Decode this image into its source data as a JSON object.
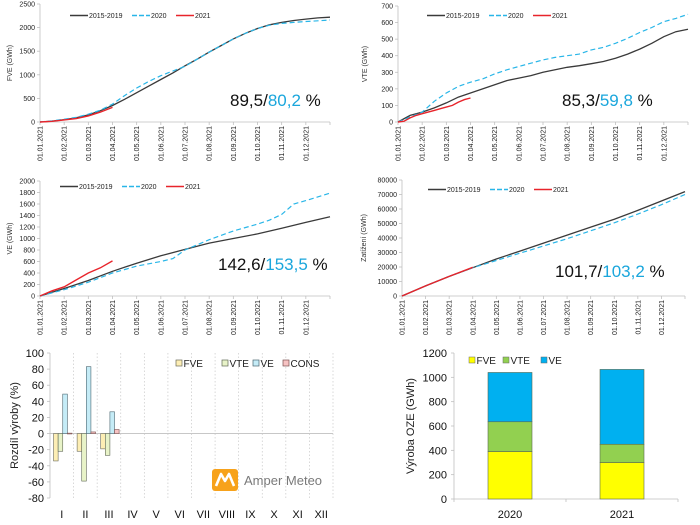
{
  "colors": {
    "avg": "#3a3a3a",
    "y2020": "#29b6e8",
    "y2021": "#e8242b",
    "pct_black": "#111111",
    "pct_blue": "#1aa6dc",
    "fve_light": "#fdeeb4",
    "vte_light": "#e8f3c8",
    "ve_light": "#c5ecf7",
    "cons_light": "#f7c3c3",
    "fve": "#ffff00",
    "vte": "#92d050",
    "ve": "#00b0f0",
    "logo": "#f7a21b"
  },
  "branding": {
    "logo_text": "Amper Meteo"
  },
  "chart_data": [
    {
      "id": "fve",
      "type": "line",
      "title": "",
      "ylabel": "FVE  (GWh)",
      "xlabel": "",
      "ylim": [
        0,
        2500
      ],
      "yticks": [
        0,
        500,
        1000,
        1500,
        2000,
        2500
      ],
      "xticks": [
        "01.01.2021",
        "01.02.2021",
        "01.03.2021",
        "01.04.2021",
        "01.05.2021",
        "01.06.2021",
        "01.07.2021",
        "01.08.2021",
        "01.09.2021",
        "01.10.2021",
        "01.11.2021",
        "01.12.2021"
      ],
      "xlim_months": [
        0,
        12
      ],
      "legend": [
        "2015-2019",
        "2020",
        "2021"
      ],
      "legend_position": "top-left",
      "annotation": {
        "black": "89,5/",
        "blue": "80,2",
        "suffix": " %"
      },
      "series": [
        {
          "name": "2015-2019",
          "x": [
            0,
            0.5,
            1,
            1.5,
            2,
            2.5,
            3,
            3.5,
            4,
            4.5,
            5,
            5.5,
            6,
            6.5,
            7,
            7.5,
            8,
            8.5,
            9,
            9.5,
            10,
            10.5,
            11,
            11.5,
            12
          ],
          "values": [
            0,
            20,
            50,
            90,
            150,
            240,
            350,
            480,
            620,
            760,
            900,
            1040,
            1190,
            1330,
            1480,
            1620,
            1760,
            1880,
            1980,
            2060,
            2110,
            2150,
            2180,
            2205,
            2220
          ]
        },
        {
          "name": "2020",
          "x": [
            0,
            0.5,
            1,
            1.5,
            2,
            2.5,
            3,
            3.5,
            4,
            4.5,
            5,
            5.5,
            6,
            6.5,
            7,
            7.5,
            8,
            8.5,
            9,
            9.5,
            10,
            10.5,
            11,
            11.5,
            12
          ],
          "values": [
            0,
            25,
            60,
            100,
            165,
            250,
            380,
            560,
            720,
            860,
            980,
            1080,
            1180,
            1330,
            1480,
            1620,
            1760,
            1880,
            1980,
            2050,
            2090,
            2110,
            2130,
            2145,
            2160
          ]
        },
        {
          "name": "2021",
          "x": [
            0,
            0.5,
            1,
            1.5,
            2,
            2.5,
            3
          ],
          "values": [
            0,
            15,
            45,
            75,
            130,
            210,
            310
          ]
        }
      ]
    },
    {
      "id": "vte",
      "type": "line",
      "title": "",
      "ylabel": "VTE  (GWh)",
      "xlabel": "",
      "ylim": [
        0,
        700
      ],
      "yticks": [
        0,
        100,
        200,
        300,
        400,
        500,
        600,
        700
      ],
      "xticks": [
        "01.01.2021",
        "01.02.2021",
        "01.03.2021",
        "01.04.2021",
        "01.05.2021",
        "01.06.2021",
        "01.07.2021",
        "01.08.2021",
        "01.09.2021",
        "01.10.2021",
        "01.11.2021",
        "01.12.2021"
      ],
      "xlim_months": [
        0,
        12
      ],
      "legend": [
        "2015-2019",
        "2020",
        "2021"
      ],
      "legend_position": "top-left",
      "annotation": {
        "black": "85,3/",
        "blue": "59,8",
        "suffix": " %"
      },
      "series": [
        {
          "name": "2015-2019",
          "x": [
            0,
            0.5,
            1,
            1.5,
            2,
            2.5,
            3,
            3.5,
            4,
            4.5,
            5,
            5.5,
            6,
            6.5,
            7,
            7.5,
            8,
            8.5,
            9,
            9.5,
            10,
            10.5,
            11,
            11.5,
            12
          ],
          "values": [
            0,
            40,
            60,
            85,
            115,
            150,
            175,
            200,
            225,
            250,
            265,
            280,
            300,
            315,
            330,
            340,
            352,
            365,
            385,
            410,
            440,
            475,
            515,
            545,
            560
          ]
        },
        {
          "name": "2020",
          "x": [
            0,
            0.5,
            1,
            1.5,
            2,
            2.5,
            3,
            3.5,
            4,
            4.5,
            5,
            5.5,
            6,
            6.5,
            7,
            7.5,
            8,
            8.5,
            9,
            9.5,
            10,
            10.5,
            11,
            11.5,
            12
          ],
          "values": [
            0,
            30,
            60,
            125,
            175,
            215,
            240,
            260,
            290,
            315,
            335,
            355,
            375,
            390,
            400,
            410,
            435,
            450,
            475,
            505,
            540,
            570,
            605,
            625,
            650
          ]
        },
        {
          "name": "2021",
          "x": [
            0,
            0.25,
            0.5,
            0.75,
            1,
            1.25,
            1.5,
            1.75,
            2,
            2.25,
            2.5,
            2.75,
            3
          ],
          "values": [
            0,
            5,
            25,
            40,
            50,
            60,
            70,
            80,
            90,
            100,
            120,
            135,
            145
          ]
        }
      ]
    },
    {
      "id": "ve",
      "type": "line",
      "title": "",
      "ylabel": "VE  (GWh)",
      "xlabel": "",
      "ylim": [
        0,
        2000
      ],
      "yticks": [
        0,
        200,
        400,
        600,
        800,
        1000,
        1200,
        1400,
        1600,
        1800,
        2000
      ],
      "xticks": [
        "01.01.2021",
        "01.02.2021",
        "01.03.2021",
        "01.04.2021",
        "01.05.2021",
        "01.06.2021",
        "01.07.2021",
        "01.08.2021",
        "01.09.2021",
        "01.10.2021",
        "01.11.2021",
        "01.12.2021"
      ],
      "xlim_months": [
        0,
        12
      ],
      "legend": [
        "2015-2019",
        "2020",
        "2021"
      ],
      "legend_position": "top-left",
      "annotation": {
        "black": "142,6/",
        "blue": "153,5",
        "suffix": " %"
      },
      "series": [
        {
          "name": "2015-2019",
          "x": [
            0,
            1,
            2,
            3,
            4,
            5,
            6,
            7,
            8,
            9,
            10,
            11,
            12
          ],
          "values": [
            0,
            130,
            270,
            430,
            570,
            700,
            810,
            920,
            1000,
            1080,
            1180,
            1280,
            1380
          ]
        },
        {
          "name": "2020",
          "x": [
            0,
            1,
            2,
            3,
            4,
            5,
            5.5,
            6,
            7,
            8,
            9,
            9.5,
            10,
            10.5,
            11,
            12
          ],
          "values": [
            0,
            110,
            240,
            400,
            520,
            600,
            650,
            800,
            980,
            1130,
            1250,
            1320,
            1420,
            1600,
            1660,
            1790
          ]
        },
        {
          "name": "2021",
          "x": [
            0,
            0.5,
            1,
            1.5,
            2,
            2.5,
            3
          ],
          "values": [
            0,
            90,
            160,
            280,
            400,
            490,
            610
          ]
        }
      ]
    },
    {
      "id": "load",
      "type": "line",
      "title": "",
      "ylabel": "Zatížení  (GWh)",
      "xlabel": "",
      "ylim": [
        0,
        80000
      ],
      "yticks": [
        0,
        10000,
        20000,
        30000,
        40000,
        50000,
        60000,
        70000,
        80000
      ],
      "xticks": [
        "01.01.2021",
        "01.02.2021",
        "01.03.2021",
        "01.04.2021",
        "01.05.2021",
        "01.06.2021",
        "01.07.2021",
        "01.08.2021",
        "01.09.2021",
        "01.10.2021",
        "01.11.2021",
        "01.12.2021"
      ],
      "xlim_months": [
        0,
        12
      ],
      "legend": [
        "2015-2019",
        "2020",
        "2021"
      ],
      "legend_position": "top-left",
      "annotation": {
        "black": "101,7/",
        "blue": "103,2",
        "suffix": " %"
      },
      "series": [
        {
          "name": "2015-2019",
          "x": [
            0,
            1,
            2,
            3,
            4,
            5,
            6,
            7,
            8,
            9,
            10,
            11,
            12
          ],
          "values": [
            0,
            7000,
            13500,
            19500,
            25500,
            31000,
            36500,
            42000,
            47500,
            53000,
            59000,
            65500,
            72000
          ]
        },
        {
          "name": "2020",
          "x": [
            0,
            1,
            2,
            3,
            4,
            5,
            6,
            7,
            8,
            9,
            10,
            11,
            12
          ],
          "values": [
            0,
            7000,
            13500,
            19500,
            24500,
            29500,
            34500,
            39500,
            45000,
            50500,
            56500,
            63000,
            70000
          ]
        },
        {
          "name": "2021",
          "x": [
            0,
            1,
            2,
            3
          ],
          "values": [
            0,
            7000,
            13500,
            19800
          ]
        }
      ]
    },
    {
      "id": "diff",
      "type": "bar",
      "title": "",
      "ylabel": "Rozdíl výroby (%)",
      "xlabel": "",
      "ylim": [
        -80,
        100
      ],
      "yticks": [
        -80,
        -60,
        -40,
        -20,
        0,
        20,
        40,
        60,
        80,
        100
      ],
      "categories": [
        "I",
        "II",
        "III",
        "IV",
        "V",
        "VI",
        "VII",
        "VIII",
        "IX",
        "X",
        "XI",
        "XII"
      ],
      "legend_position": "top-right",
      "series": [
        {
          "name": "FVE",
          "values": [
            -34,
            -22,
            -19,
            null,
            null,
            null,
            null,
            null,
            null,
            null,
            null,
            null
          ]
        },
        {
          "name": "VTE",
          "values": [
            -22,
            -59,
            -27,
            null,
            null,
            null,
            null,
            null,
            null,
            null,
            null,
            null
          ]
        },
        {
          "name": "VE",
          "values": [
            49,
            83,
            27,
            null,
            null,
            null,
            null,
            null,
            null,
            null,
            null,
            null
          ]
        },
        {
          "name": "CONS",
          "values": [
            0.5,
            2,
            5,
            null,
            null,
            null,
            null,
            null,
            null,
            null,
            null,
            null
          ]
        }
      ]
    },
    {
      "id": "oze",
      "type": "bar",
      "stacked": true,
      "title": "",
      "ylabel": "Výroba OZE (GWh)",
      "xlabel": "",
      "ylim": [
        0,
        1200
      ],
      "yticks": [
        0,
        200,
        400,
        600,
        800,
        1000,
        1200
      ],
      "categories": [
        "2020",
        "2021"
      ],
      "legend_position": "top-left",
      "series": [
        {
          "name": "FVE",
          "values": [
            390,
            300
          ]
        },
        {
          "name": "VTE",
          "values": [
            245,
            150
          ]
        },
        {
          "name": "VE",
          "values": [
            405,
            615
          ]
        }
      ]
    }
  ]
}
